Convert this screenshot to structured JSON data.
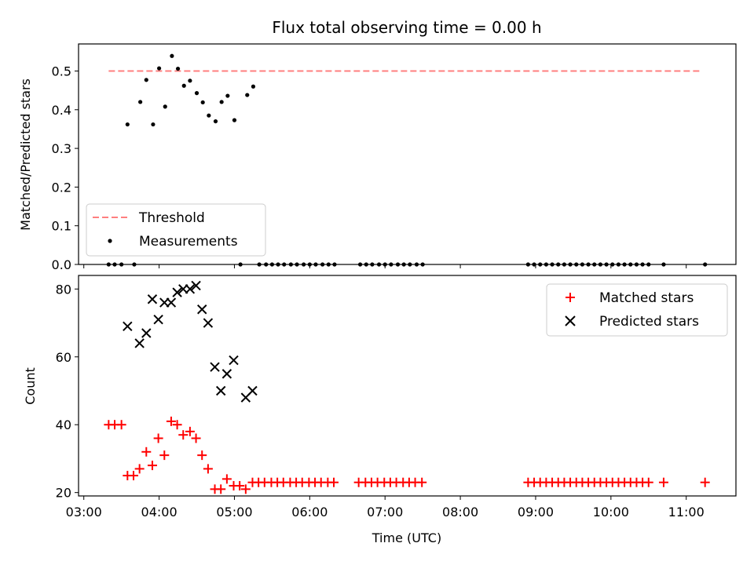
{
  "chart_data": {
    "type": "scatter",
    "title": "Flux total observing time = 0.00 h",
    "xlabel": "Time (UTC)",
    "x_ticks": [
      "03:00",
      "04:00",
      "05:00",
      "06:00",
      "07:00",
      "08:00",
      "09:00",
      "10:00",
      "11:00"
    ],
    "x_tick_hours": [
      3,
      4,
      5,
      6,
      7,
      8,
      9,
      10,
      11
    ],
    "xlim": [
      2.93,
      11.66
    ],
    "panels": [
      {
        "ylabel": "Matched/Predicted stars",
        "ylim": [
          0,
          0.57
        ],
        "y_ticks": [
          0.0,
          0.1,
          0.2,
          0.3,
          0.4,
          0.5
        ],
        "y_tick_labels": [
          "0.0",
          "0.1",
          "0.2",
          "0.3",
          "0.4",
          "0.5"
        ],
        "legend_position": "lower-left",
        "threshold": {
          "name": "Threshold",
          "value": 0.5,
          "x_range": [
            3.33,
            11.2
          ],
          "color": "#ff7f7f"
        },
        "measurements": {
          "name": "Measurements",
          "color": "#000000",
          "x": [
            3.33,
            3.41,
            3.5,
            3.58,
            3.67,
            3.75,
            3.83,
            3.92,
            4.0,
            4.08,
            4.17,
            4.25,
            4.33,
            4.41,
            4.5,
            4.58,
            4.66,
            4.75,
            4.83,
            4.91,
            5.0,
            5.08,
            5.17,
            5.25,
            5.33,
            5.42,
            5.5,
            5.58,
            5.66,
            5.75,
            5.83,
            5.92,
            6.0,
            6.08,
            6.17,
            6.25,
            6.33,
            6.67,
            6.75,
            6.83,
            6.92,
            7.0,
            7.08,
            7.17,
            7.25,
            7.33,
            7.42,
            7.5,
            8.9,
            8.98,
            9.06,
            9.14,
            9.22,
            9.3,
            9.38,
            9.46,
            9.54,
            9.62,
            9.7,
            9.78,
            9.86,
            9.94,
            10.02,
            10.1,
            10.18,
            10.26,
            10.34,
            10.42,
            10.5,
            10.7,
            11.25
          ],
          "y": [
            0,
            0,
            0,
            0.362,
            0,
            0.42,
            0.477,
            0.362,
            0.507,
            0.408,
            0.539,
            0.506,
            0.462,
            0.475,
            0.443,
            0.419,
            0.385,
            0.37,
            0.42,
            0.436,
            0.373,
            0,
            0.438,
            0.46,
            0,
            0,
            0,
            0,
            0,
            0,
            0,
            0,
            0,
            0,
            0,
            0,
            0,
            0,
            0,
            0,
            0,
            0,
            0,
            0,
            0,
            0,
            0,
            0,
            0,
            0,
            0,
            0,
            0,
            0,
            0,
            0,
            0,
            0,
            0,
            0,
            0,
            0,
            0,
            0,
            0,
            0,
            0,
            0,
            0,
            0,
            0
          ]
        }
      },
      {
        "ylabel": "Count",
        "ylim": [
          19,
          84
        ],
        "y_ticks": [
          20,
          40,
          60,
          80
        ],
        "y_tick_labels": [
          "20",
          "40",
          "60",
          "80"
        ],
        "legend_position": "upper-right",
        "series": [
          {
            "name": "Matched stars",
            "marker": "plus",
            "color": "#ff0000",
            "x": [
              3.33,
              3.41,
              3.5,
              3.58,
              3.66,
              3.74,
              3.83,
              3.91,
              3.99,
              4.07,
              4.16,
              4.24,
              4.32,
              4.41,
              4.49,
              4.57,
              4.65,
              4.74,
              4.82,
              4.9,
              4.99,
              5.07,
              5.15,
              5.24,
              5.32,
              5.4,
              5.49,
              5.57,
              5.65,
              5.74,
              5.82,
              5.9,
              5.99,
              6.07,
              6.15,
              6.24,
              6.32,
              6.65,
              6.74,
              6.82,
              6.9,
              6.99,
              7.07,
              7.15,
              7.24,
              7.32,
              7.4,
              7.49,
              8.9,
              8.98,
              9.06,
              9.14,
              9.22,
              9.3,
              9.38,
              9.46,
              9.54,
              9.62,
              9.7,
              9.78,
              9.86,
              9.94,
              10.02,
              10.1,
              10.18,
              10.26,
              10.34,
              10.42,
              10.5,
              10.7,
              11.25
            ],
            "y": [
              40,
              40,
              40,
              25,
              25,
              27,
              32,
              28,
              36,
              31,
              41,
              40,
              37,
              38,
              36,
              31,
              27,
              21,
              21,
              24,
              22,
              22,
              21,
              23,
              23,
              23,
              23,
              23,
              23,
              23,
              23,
              23,
              23,
              23,
              23,
              23,
              23,
              23,
              23,
              23,
              23,
              23,
              23,
              23,
              23,
              23,
              23,
              23,
              23,
              23,
              23,
              23,
              23,
              23,
              23,
              23,
              23,
              23,
              23,
              23,
              23,
              23,
              23,
              23,
              23,
              23,
              23,
              23,
              23,
              23,
              23
            ]
          },
          {
            "name": "Predicted stars",
            "marker": "x",
            "color": "#000000",
            "x": [
              3.58,
              3.74,
              3.83,
              3.91,
              3.99,
              4.07,
              4.16,
              4.24,
              4.32,
              4.41,
              4.49,
              4.57,
              4.65,
              4.74,
              4.82,
              4.9,
              4.99,
              5.15,
              5.24
            ],
            "y": [
              69,
              64,
              67,
              77,
              71,
              76,
              76,
              79,
              80,
              80,
              81,
              74,
              70,
              57,
              50,
              55,
              59,
              48,
              50
            ]
          }
        ]
      }
    ]
  }
}
